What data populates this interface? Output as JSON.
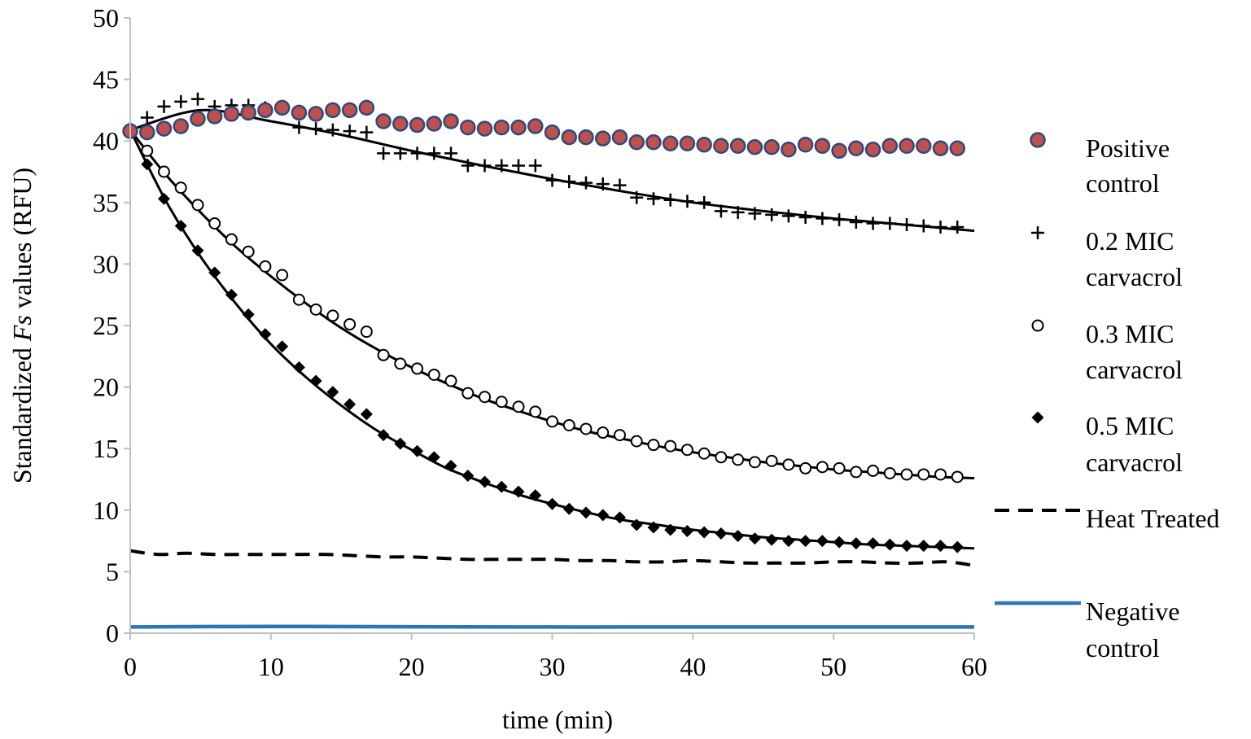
{
  "chart_data": {
    "type": "scatter",
    "xlabel": "time (min)",
    "ylabel_parts": [
      "Standardized ",
      "Fs",
      " values (RFU)"
    ],
    "xlim": [
      0,
      60
    ],
    "ylim": [
      0,
      50
    ],
    "x_ticks": [
      0,
      10,
      20,
      30,
      40,
      50,
      60
    ],
    "y_ticks": [
      0,
      5,
      10,
      15,
      20,
      25,
      30,
      35,
      40,
      45,
      50
    ],
    "grid": false,
    "legend_position": "right",
    "series": [
      {
        "name": "Positive control",
        "legend_lines": [
          "Positive",
          "control"
        ],
        "marker": "circle-filled",
        "fill": "#c0504d",
        "stroke": "#2e4a7a",
        "x": [
          0,
          1.2,
          2.4,
          3.6,
          4.8,
          6,
          7.2,
          8.4,
          9.6,
          10.8,
          12,
          13.2,
          14.4,
          15.6,
          16.8,
          18,
          19.2,
          20.4,
          21.6,
          22.8,
          24,
          25.2,
          26.4,
          27.6,
          28.8,
          30,
          31.2,
          32.4,
          33.6,
          34.8,
          36,
          37.2,
          38.4,
          39.6,
          40.8,
          42,
          43.2,
          44.4,
          45.6,
          46.8,
          48,
          49.2,
          50.4,
          51.6,
          52.8,
          54,
          55.2,
          56.4,
          57.6,
          58.8
        ],
        "y": [
          40.8,
          40.7,
          41.0,
          41.2,
          41.8,
          42.0,
          42.2,
          42.3,
          42.5,
          42.7,
          42.3,
          42.2,
          42.5,
          42.5,
          42.7,
          41.6,
          41.4,
          41.3,
          41.4,
          41.6,
          41.1,
          41.0,
          41.1,
          41.1,
          41.2,
          40.7,
          40.3,
          40.3,
          40.2,
          40.3,
          39.9,
          39.9,
          39.8,
          39.8,
          39.7,
          39.6,
          39.6,
          39.5,
          39.5,
          39.3,
          39.7,
          39.6,
          39.2,
          39.4,
          39.3,
          39.6,
          39.6,
          39.6,
          39.4,
          39.4
        ]
      },
      {
        "name": "0.2 MIC carvacrol",
        "legend_lines": [
          "0.2 MIC",
          "carvacrol"
        ],
        "marker": "plus",
        "stroke": "#000000",
        "x": [
          0,
          1.2,
          2.4,
          3.6,
          4.8,
          6,
          7.2,
          8.4,
          9.6,
          10.8,
          12,
          13.2,
          14.4,
          15.6,
          16.8,
          18,
          19.2,
          20.4,
          21.6,
          22.8,
          24,
          25.2,
          26.4,
          27.6,
          28.8,
          30,
          31.2,
          32.4,
          33.6,
          34.8,
          36,
          37.2,
          38.4,
          39.6,
          40.8,
          42,
          43.2,
          44.4,
          45.6,
          46.8,
          48,
          49.2,
          50.4,
          51.6,
          52.8,
          54,
          55.2,
          56.4,
          57.6,
          58.8
        ],
        "y": [
          41.0,
          41.9,
          42.8,
          43.2,
          43.4,
          42.8,
          42.9,
          42.9,
          42.7,
          42.6,
          41.1,
          41.0,
          40.9,
          40.8,
          40.7,
          39.0,
          39.0,
          39.0,
          39.0,
          39.0,
          38.0,
          38.0,
          38.0,
          38.0,
          38.0,
          36.8,
          36.7,
          36.6,
          36.5,
          36.4,
          35.4,
          35.3,
          35.2,
          35.1,
          35.0,
          34.3,
          34.2,
          34.1,
          34.0,
          33.9,
          33.8,
          33.7,
          33.6,
          33.4,
          33.3,
          33.3,
          33.2,
          33.1,
          33.0,
          33.0
        ]
      },
      {
        "name": "0.3 MIC carvacrol",
        "legend_lines": [
          "0.3 MIC",
          "carvacrol"
        ],
        "marker": "circle-open",
        "stroke": "#000000",
        "x": [
          0,
          1.2,
          2.4,
          3.6,
          4.8,
          6,
          7.2,
          8.4,
          9.6,
          10.8,
          12,
          13.2,
          14.4,
          15.6,
          16.8,
          18,
          19.2,
          20.4,
          21.6,
          22.8,
          24,
          25.2,
          26.4,
          27.6,
          28.8,
          30,
          31.2,
          32.4,
          33.6,
          34.8,
          36,
          37.2,
          38.4,
          39.6,
          40.8,
          42,
          43.2,
          44.4,
          45.6,
          46.8,
          48,
          49.2,
          50.4,
          51.6,
          52.8,
          54,
          55.2,
          56.4,
          57.6,
          58.8
        ],
        "y": [
          40.9,
          39.2,
          37.5,
          36.2,
          34.8,
          33.3,
          32.0,
          31.0,
          29.8,
          29.1,
          27.1,
          26.3,
          25.8,
          25.1,
          24.5,
          22.6,
          21.9,
          21.5,
          21.0,
          20.5,
          19.5,
          19.2,
          18.8,
          18.4,
          18.0,
          17.2,
          16.9,
          16.6,
          16.3,
          16.1,
          15.6,
          15.3,
          15.2,
          14.9,
          14.6,
          14.3,
          14.1,
          13.9,
          14.0,
          13.7,
          13.4,
          13.5,
          13.4,
          13.1,
          13.2,
          13.0,
          12.9,
          12.9,
          12.9,
          12.7
        ]
      },
      {
        "name": "0.5 MIC carvacrol",
        "legend_lines": [
          "0.5 MIC",
          "carvacrol"
        ],
        "marker": "diamond",
        "fill": "#000000",
        "x": [
          0,
          1.2,
          2.4,
          3.6,
          4.8,
          6,
          7.2,
          8.4,
          9.6,
          10.8,
          12,
          13.2,
          14.4,
          15.6,
          16.8,
          18,
          19.2,
          20.4,
          21.6,
          22.8,
          24,
          25.2,
          26.4,
          27.6,
          28.8,
          30,
          31.2,
          32.4,
          33.6,
          34.8,
          36,
          37.2,
          38.4,
          39.6,
          40.8,
          42,
          43.2,
          44.4,
          45.6,
          46.8,
          48,
          49.2,
          50.4,
          51.6,
          52.8,
          54,
          55.2,
          56.4,
          57.6,
          58.8
        ],
        "y": [
          40.9,
          38.1,
          35.3,
          33.1,
          31.1,
          29.3,
          27.5,
          25.9,
          24.3,
          23.3,
          21.6,
          20.5,
          19.6,
          18.6,
          17.8,
          16.1,
          15.4,
          14.8,
          14.3,
          13.6,
          12.8,
          12.3,
          11.9,
          11.5,
          11.2,
          10.5,
          10.1,
          9.8,
          9.6,
          9.4,
          8.8,
          8.6,
          8.4,
          8.3,
          8.2,
          8.1,
          7.9,
          7.7,
          7.6,
          7.5,
          7.5,
          7.5,
          7.4,
          7.3,
          7.3,
          7.2,
          7.1,
          7.1,
          7.1,
          7.0
        ]
      },
      {
        "name": "Heat Treated",
        "legend_lines": [
          "Heat Treated"
        ],
        "marker": "dashed-line",
        "stroke": "#000000",
        "x": [
          0,
          2,
          4,
          6,
          8,
          10,
          12,
          14,
          16,
          18,
          20,
          22,
          24,
          26,
          28,
          30,
          32,
          34,
          36,
          38,
          40,
          42,
          44,
          46,
          48,
          50,
          52,
          54,
          56,
          58,
          60
        ],
        "y": [
          6.7,
          6.4,
          6.5,
          6.4,
          6.4,
          6.4,
          6.4,
          6.4,
          6.3,
          6.2,
          6.2,
          6.1,
          6.0,
          6.0,
          6.0,
          6.0,
          5.9,
          5.9,
          5.8,
          5.8,
          5.9,
          5.8,
          5.7,
          5.7,
          5.7,
          5.8,
          5.8,
          5.7,
          5.7,
          5.8,
          5.5
        ]
      },
      {
        "name": "Negative control",
        "legend_lines": [
          "Negative",
          "control"
        ],
        "marker": "solid-line",
        "stroke": "#2e75b6",
        "x": [
          0,
          10,
          20,
          30,
          40,
          50,
          60
        ],
        "y": [
          0.5,
          0.55,
          0.52,
          0.5,
          0.5,
          0.5,
          0.5
        ]
      }
    ],
    "fit_curves": [
      {
        "for": "0.2 MIC carvacrol",
        "x": [
          0,
          5,
          10,
          15,
          20,
          25,
          30,
          35,
          40,
          45,
          50,
          55,
          60
        ],
        "y": [
          40.9,
          42.5,
          41.6,
          40.5,
          39.2,
          38.0,
          36.9,
          35.9,
          35.0,
          34.3,
          33.7,
          33.2,
          32.7
        ]
      },
      {
        "for": "0.3 MIC carvacrol",
        "x": [
          0,
          2.5,
          5,
          7.5,
          10,
          12.5,
          15,
          17.5,
          20,
          22.5,
          25,
          27.5,
          30,
          32.5,
          35,
          37.5,
          40,
          42.5,
          45,
          47.5,
          50,
          52.5,
          55,
          57.5,
          60
        ],
        "y": [
          40.9,
          37.3,
          34.2,
          31.4,
          29.0,
          26.8,
          24.8,
          23.1,
          21.6,
          20.3,
          19.1,
          18.1,
          17.2,
          16.4,
          15.8,
          15.2,
          14.7,
          14.3,
          13.9,
          13.6,
          13.3,
          13.1,
          12.9,
          12.7,
          12.6
        ]
      },
      {
        "for": "0.5 MIC carvacrol",
        "x": [
          0,
          2.5,
          5,
          7.5,
          10,
          12.5,
          15,
          17.5,
          20,
          22.5,
          25,
          27.5,
          30,
          32.5,
          35,
          37.5,
          40,
          42.5,
          45,
          47.5,
          50,
          52.5,
          55,
          57.5,
          60
        ],
        "y": [
          40.9,
          35.2,
          30.6,
          26.8,
          23.5,
          20.8,
          18.5,
          16.5,
          14.9,
          13.4,
          12.3,
          11.3,
          10.5,
          9.8,
          9.2,
          8.8,
          8.4,
          8.1,
          7.8,
          7.6,
          7.4,
          7.2,
          7.1,
          7.0,
          6.9
        ]
      }
    ]
  }
}
